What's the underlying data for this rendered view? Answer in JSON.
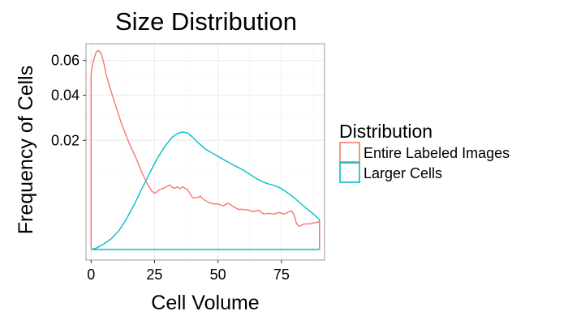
{
  "chart_data": {
    "type": "line",
    "title": "Size Distribution",
    "xlabel": "Cell Volume",
    "ylabel": "Frequency of Cells",
    "xlim": [
      -2,
      92
    ],
    "ylim": [
      0,
      0.07
    ],
    "y_scale": "sqrt",
    "x_ticks": [
      0,
      25,
      50,
      75
    ],
    "x_tick_labels": [
      "0",
      "25",
      "50",
      "75"
    ],
    "y_ticks": [
      0.02,
      0.04,
      0.06
    ],
    "y_tick_labels": [
      "0.02",
      "0.04",
      "0.06"
    ],
    "grid": true,
    "legend": {
      "title": "Distribution",
      "position": "right",
      "entries": [
        "Entire Labeled Images",
        "Larger Cells"
      ]
    },
    "series": [
      {
        "name": "Entire Labeled Images",
        "color": "#F8766D",
        "x": [
          0,
          0,
          0.5,
          1.2,
          2,
          3,
          4,
          5,
          6,
          8,
          10,
          12,
          15,
          18,
          20,
          22,
          24,
          25,
          26,
          27,
          28,
          29,
          30,
          31,
          32,
          33,
          34,
          35,
          36,
          37,
          38,
          40,
          42,
          43,
          44,
          46,
          48,
          50,
          52,
          54,
          56,
          58,
          60,
          62,
          64,
          66,
          68,
          70,
          72,
          74,
          76,
          78,
          79,
          80,
          81,
          82,
          84,
          86,
          88,
          90,
          90
        ],
        "y": [
          0,
          0.0515,
          0.0565,
          0.0615,
          0.0655,
          0.0665,
          0.0645,
          0.0585,
          0.051,
          0.0415,
          0.0335,
          0.0265,
          0.019,
          0.0135,
          0.01,
          0.0074,
          0.0057,
          0.0053,
          0.0056,
          0.006,
          0.0062,
          0.0064,
          0.0067,
          0.007,
          0.0065,
          0.0063,
          0.0066,
          0.0062,
          0.0066,
          0.0063,
          0.006,
          0.0045,
          0.0045,
          0.0048,
          0.0043,
          0.0038,
          0.0035,
          0.0035,
          0.0032,
          0.0036,
          0.0031,
          0.0027,
          0.0027,
          0.0026,
          0.0024,
          0.0026,
          0.0021,
          0.0022,
          0.0021,
          0.0023,
          0.0021,
          0.0024,
          0.0025,
          0.002,
          0.0011,
          0.0009,
          0.0011,
          0.0011,
          0.0012,
          0.0013,
          0
        ]
      },
      {
        "name": "Larger Cells",
        "color": "#00BFC4",
        "x": [
          0,
          2,
          5,
          8,
          11,
          14,
          17,
          20,
          23,
          26,
          29,
          32,
          34,
          36,
          38,
          40,
          42,
          45,
          48,
          51,
          55,
          60,
          65,
          68,
          70,
          72,
          74,
          76,
          80,
          84,
          88,
          90,
          90,
          0
        ],
        "y": [
          0,
          3e-06,
          5e-05,
          0.0002,
          0.0006,
          0.0016,
          0.0034,
          0.0062,
          0.0097,
          0.0138,
          0.0178,
          0.0212,
          0.0226,
          0.0232,
          0.0228,
          0.0212,
          0.0193,
          0.017,
          0.0155,
          0.0141,
          0.0124,
          0.0106,
          0.0085,
          0.0076,
          0.0072,
          0.0069,
          0.0065,
          0.0059,
          0.0045,
          0.0031,
          0.002,
          0.0015,
          0,
          0
        ]
      }
    ]
  }
}
